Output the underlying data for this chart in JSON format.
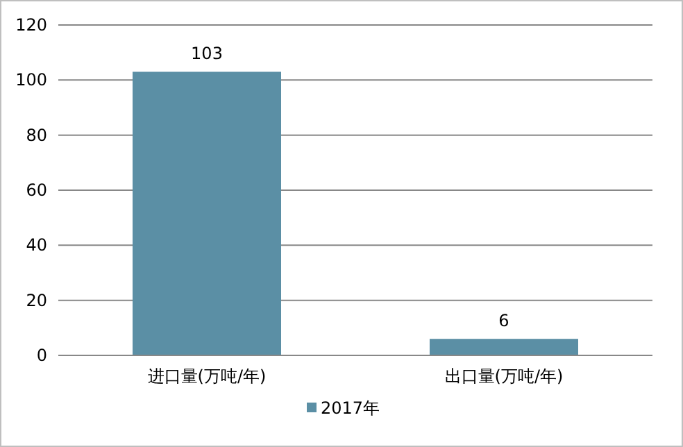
{
  "chart_data": {
    "type": "bar",
    "categories": [
      "进口量(万吨/年)",
      "出口量(万吨/年)"
    ],
    "series": [
      {
        "name": "2017年",
        "color": "#5b8fa5",
        "values": [
          103,
          6
        ]
      }
    ],
    "ylim": [
      0,
      120
    ],
    "yticks": [
      0,
      20,
      40,
      60,
      80,
      100,
      120
    ],
    "grid": "y",
    "data_labels": true,
    "legend": "bottom"
  }
}
